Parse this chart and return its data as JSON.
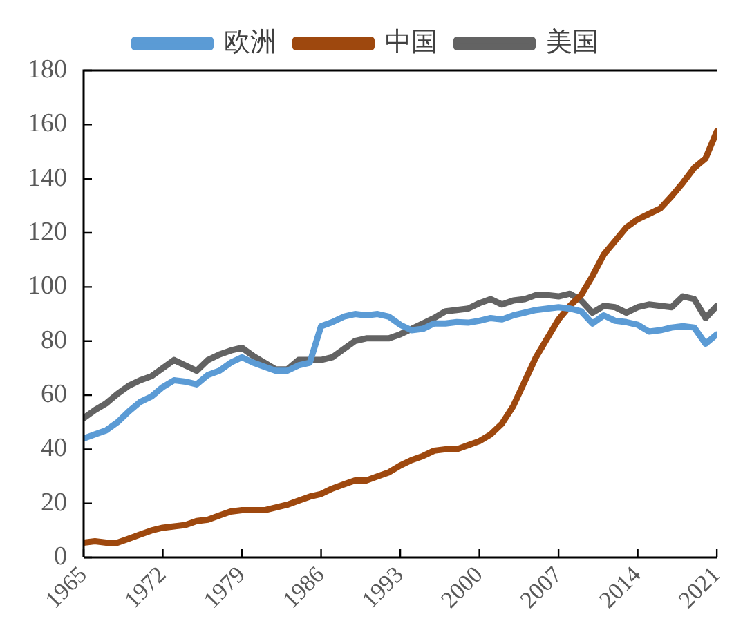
{
  "chart_data": {
    "type": "line",
    "x": [
      1965,
      1966,
      1967,
      1968,
      1969,
      1970,
      1971,
      1972,
      1973,
      1974,
      1975,
      1976,
      1977,
      1978,
      1979,
      1980,
      1981,
      1982,
      1983,
      1984,
      1985,
      1986,
      1987,
      1988,
      1989,
      1990,
      1991,
      1992,
      1993,
      1994,
      1995,
      1996,
      1997,
      1998,
      1999,
      2000,
      2001,
      2002,
      2003,
      2004,
      2005,
      2006,
      2007,
      2008,
      2009,
      2010,
      2011,
      2012,
      2013,
      2014,
      2015,
      2016,
      2017,
      2018,
      2019,
      2020,
      2021
    ],
    "series": [
      {
        "name": "欧洲",
        "color": "#5b9bd5",
        "values": [
          44,
          45.5,
          47,
          50,
          54,
          57.5,
          59.5,
          63,
          65.5,
          65,
          64,
          67.5,
          69,
          72,
          74,
          72,
          70.5,
          69,
          69,
          71,
          72,
          85.5,
          87,
          89,
          90,
          89.5,
          90,
          89,
          86,
          84,
          84.5,
          86.5,
          86.5,
          87,
          86.8,
          87.5,
          88.5,
          88,
          89.5,
          90.5,
          91.5,
          92,
          92.5,
          92,
          91,
          86.5,
          89.5,
          87.5,
          87,
          86,
          83.5,
          84,
          85,
          85.5,
          85,
          79,
          82.5
        ]
      },
      {
        "name": "中国",
        "color": "#9e480e",
        "values": [
          5.5,
          6,
          5.5,
          5.5,
          7,
          8.5,
          10,
          11,
          11.5,
          12,
          13.5,
          14,
          15.5,
          17,
          17.5,
          17.5,
          17.5,
          18.5,
          19.5,
          21,
          22.5,
          23.5,
          25.5,
          27,
          28.5,
          28.5,
          30,
          31.5,
          34,
          36,
          37.5,
          39.5,
          40,
          40,
          41.5,
          43,
          45.5,
          49.5,
          56,
          65,
          74,
          81,
          88,
          93,
          97,
          104,
          112,
          117,
          122,
          125,
          127,
          129,
          133.5,
          138.5,
          144,
          147.5,
          157.5
        ]
      },
      {
        "name": "美国",
        "color": "#636363",
        "values": [
          51.5,
          54.5,
          57,
          60.5,
          63.5,
          65.5,
          67,
          70,
          73,
          71,
          69,
          73,
          75,
          76.5,
          77.5,
          74.5,
          72,
          69.5,
          69.5,
          73,
          73,
          73,
          74,
          77,
          80,
          81,
          81,
          81,
          82.5,
          84.5,
          86.5,
          88.5,
          91,
          91.5,
          92,
          94,
          95.5,
          93.5,
          95,
          95.5,
          97,
          97,
          96.5,
          97.5,
          95,
          90.5,
          93,
          92.5,
          90.5,
          92.5,
          93.5,
          93,
          92.5,
          96.5,
          95.5,
          88.5,
          93
        ]
      }
    ],
    "xlim": [
      1965,
      2021
    ],
    "xticks": [
      1965,
      1972,
      1979,
      1986,
      1993,
      2000,
      2007,
      2014,
      2021
    ],
    "ylim": [
      0,
      180
    ],
    "yticks": [
      0,
      20,
      40,
      60,
      80,
      100,
      120,
      140,
      160,
      180
    ],
    "grid": false,
    "legend": "top",
    "marker": "none",
    "line_style": "solid"
  }
}
